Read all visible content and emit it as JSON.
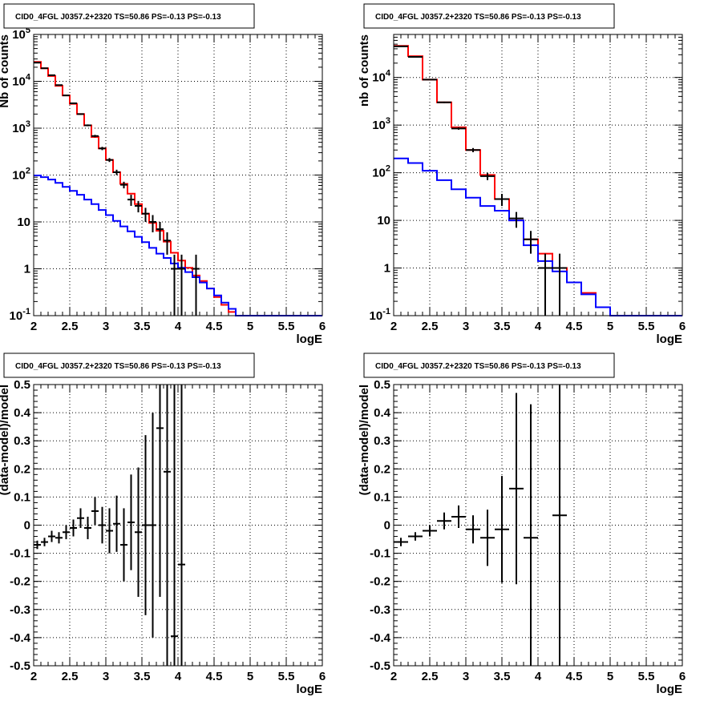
{
  "chart_data": [
    {
      "type": "line",
      "title": "CID0_4FGL J0357.2+2320 TS=50.86 PS=-0.13 PS=-0.13",
      "xlabel": "logE",
      "ylabel": "Nb of counts",
      "xlim": [
        2,
        6
      ],
      "ylim": [
        0.1,
        100000
      ],
      "log_y": true,
      "grid": true,
      "ytick_labels": [
        "10^-1",
        "1",
        "10",
        "10^2",
        "10^3",
        "10^4",
        "10^5"
      ],
      "xtick_labels": [
        "2",
        "2.5",
        "3",
        "3.5",
        "4",
        "4.5",
        "5",
        "5.5",
        "6"
      ],
      "bin_edges": [
        2.0,
        2.1,
        2.2,
        2.3,
        2.4,
        2.5,
        2.6,
        2.7,
        2.8,
        2.9,
        3.0,
        3.1,
        3.2,
        3.3,
        3.4,
        3.5,
        3.6,
        3.7,
        3.8,
        3.9,
        4.0,
        4.1,
        4.2,
        4.3,
        4.4,
        4.5,
        4.6,
        4.7,
        4.8,
        4.9,
        5.0,
        5.1,
        5.2,
        5.3,
        5.4,
        5.5,
        5.6,
        5.7,
        5.8,
        5.9,
        6.0
      ],
      "series": [
        {
          "color": "#ff0000",
          "values": [
            26000,
            19000,
            13000,
            8000,
            5000,
            3300,
            2000,
            1150,
            650,
            370,
            210,
            115,
            65,
            40,
            24,
            15,
            9.5,
            6.5,
            3.8,
            2.2,
            1.5,
            1.05,
            0.72,
            0.55,
            0.38,
            0.25,
            0.17,
            0.12,
            0.1,
            0.1,
            0.1,
            0.1,
            0.1,
            0.1,
            0.1,
            0.1,
            0.1,
            0.1,
            0.1,
            0.1
          ]
        },
        {
          "color": "#0000ff",
          "values": [
            98,
            90,
            80,
            68,
            56,
            46,
            38,
            30,
            24,
            18,
            14,
            10.5,
            8,
            6.3,
            4.8,
            3.7,
            2.8,
            2.1,
            1.7,
            1.3,
            1.05,
            0.85,
            0.66,
            0.51,
            0.38,
            0.27,
            0.19,
            0.14,
            0.1,
            0.1,
            0.1,
            0.1,
            0.1,
            0.1,
            0.1,
            0.1,
            0.1,
            0.1,
            0.1,
            0.1
          ]
        }
      ],
      "points": [
        {
          "x": 2.05,
          "y": 25000,
          "err": 300
        },
        {
          "x": 2.15,
          "y": 19000,
          "err": 250
        },
        {
          "x": 2.25,
          "y": 13500,
          "err": 200
        },
        {
          "x": 2.35,
          "y": 8300,
          "err": 150
        },
        {
          "x": 2.45,
          "y": 5000,
          "err": 110
        },
        {
          "x": 2.55,
          "y": 3400,
          "err": 90
        },
        {
          "x": 2.65,
          "y": 2000,
          "err": 70
        },
        {
          "x": 2.75,
          "y": 1150,
          "err": 50
        },
        {
          "x": 2.85,
          "y": 680,
          "err": 40
        },
        {
          "x": 2.95,
          "y": 370,
          "err": 30
        },
        {
          "x": 3.05,
          "y": 210,
          "err": 20
        },
        {
          "x": 3.15,
          "y": 115,
          "err": 15
        },
        {
          "x": 3.25,
          "y": 62,
          "err": 10
        },
        {
          "x": 3.35,
          "y": 30,
          "err": 8
        },
        {
          "x": 3.45,
          "y": 22,
          "err": 6
        },
        {
          "x": 3.55,
          "y": 15,
          "err": 5
        },
        {
          "x": 3.65,
          "y": 10,
          "err": 4
        },
        {
          "x": 3.75,
          "y": 7,
          "err": 3
        },
        {
          "x": 3.85,
          "y": 4,
          "err": 2
        },
        {
          "x": 3.95,
          "y": 1,
          "err": 1
        },
        {
          "x": 4.05,
          "y": 1,
          "err": 1
        },
        {
          "x": 4.25,
          "y": 1,
          "err": 1
        }
      ]
    },
    {
      "type": "line",
      "title": "CID0_4FGL J0357.2+2320 TS=50.86 PS=-0.13 PS=-0.13",
      "xlabel": "logE",
      "ylabel": "nb of counts",
      "xlim": [
        2,
        6
      ],
      "ylim": [
        0.1,
        80000
      ],
      "log_y": true,
      "grid": true,
      "ytick_labels": [
        "10^-1",
        "1",
        "10",
        "10^2",
        "10^3",
        "10^4"
      ],
      "xtick_labels": [
        "2",
        "2.5",
        "3",
        "3.5",
        "4",
        "4.5",
        "5",
        "5.5",
        "6"
      ],
      "bin_edges": [
        2.0,
        2.2,
        2.4,
        2.6,
        2.8,
        3.0,
        3.2,
        3.4,
        3.6,
        3.8,
        4.0,
        4.2,
        4.4,
        4.6,
        4.8,
        5.0,
        5.2,
        5.4,
        5.6,
        5.8,
        6.0
      ],
      "series": [
        {
          "color": "#ff0000",
          "values": [
            46000,
            28000,
            9000,
            3000,
            900,
            300,
            90,
            28,
            10,
            4,
            2,
            1,
            0.5,
            0.3,
            0.15,
            0.1,
            0.1,
            0.1,
            0.1,
            0.1
          ]
        },
        {
          "color": "#0000ff",
          "values": [
            200,
            160,
            110,
            70,
            45,
            30,
            20,
            16,
            10,
            3,
            1.4,
            0.85,
            0.5,
            0.28,
            0.15,
            0.1,
            0.1,
            0.1,
            0.1,
            0.1
          ]
        }
      ],
      "points": [
        {
          "x": 2.1,
          "y": 45000,
          "err": 400
        },
        {
          "x": 2.3,
          "y": 27000,
          "err": 300
        },
        {
          "x": 2.5,
          "y": 9000,
          "err": 180
        },
        {
          "x": 2.7,
          "y": 3000,
          "err": 100
        },
        {
          "x": 2.9,
          "y": 850,
          "err": 50
        },
        {
          "x": 3.1,
          "y": 300,
          "err": 30
        },
        {
          "x": 3.3,
          "y": 85,
          "err": 15
        },
        {
          "x": 3.5,
          "y": 28,
          "err": 8
        },
        {
          "x": 3.7,
          "y": 11,
          "err": 4
        },
        {
          "x": 3.9,
          "y": 4,
          "err": 2
        },
        {
          "x": 4.1,
          "y": 1,
          "err": 1
        },
        {
          "x": 4.3,
          "y": 1,
          "err": 1
        }
      ]
    },
    {
      "type": "scatter",
      "title": "CID0_4FGL J0357.2+2320 TS=50.86 PS=-0.13 PS=-0.13",
      "xlabel": "logE",
      "ylabel": "(data-model)/model",
      "xlim": [
        2,
        6
      ],
      "ylim": [
        -0.5,
        0.5
      ],
      "grid": true,
      "ytick_labels": [
        "-0.5",
        "-0.4",
        "-0.3",
        "-0.2",
        "-0.1",
        "0",
        "0.1",
        "0.2",
        "0.3",
        "0.4",
        "0.5"
      ],
      "xtick_labels": [
        "2",
        "2.5",
        "3",
        "3.5",
        "4",
        "4.5",
        "5",
        "5.5",
        "6"
      ],
      "bin_half_width": 0.05,
      "points": [
        {
          "x": 2.05,
          "y": -0.07,
          "err": 0.015
        },
        {
          "x": 2.15,
          "y": -0.06,
          "err": 0.015
        },
        {
          "x": 2.25,
          "y": -0.04,
          "err": 0.02
        },
        {
          "x": 2.35,
          "y": -0.045,
          "err": 0.02
        },
        {
          "x": 2.45,
          "y": -0.025,
          "err": 0.025
        },
        {
          "x": 2.55,
          "y": -0.01,
          "err": 0.03
        },
        {
          "x": 2.65,
          "y": 0.025,
          "err": 0.035
        },
        {
          "x": 2.75,
          "y": -0.01,
          "err": 0.04
        },
        {
          "x": 2.85,
          "y": 0.05,
          "err": 0.05
        },
        {
          "x": 2.95,
          "y": 0.0,
          "err": 0.065
        },
        {
          "x": 3.05,
          "y": -0.02,
          "err": 0.08
        },
        {
          "x": 3.15,
          "y": 0.005,
          "err": 0.1
        },
        {
          "x": 3.25,
          "y": -0.07,
          "err": 0.13
        },
        {
          "x": 3.35,
          "y": 0.01,
          "err": 0.17
        },
        {
          "x": 3.45,
          "y": -0.025,
          "err": 0.23
        },
        {
          "x": 3.55,
          "y": 0.0,
          "err": 0.32
        },
        {
          "x": 3.65,
          "y": 0.0,
          "err": 0.4
        },
        {
          "x": 3.75,
          "y": 0.345,
          "err": 0.6
        },
        {
          "x": 3.85,
          "y": 0.19,
          "err": 0.8
        },
        {
          "x": 3.95,
          "y": -0.395,
          "err": 1.0
        },
        {
          "x": 4.05,
          "y": -0.14,
          "err": 1.0
        }
      ]
    },
    {
      "type": "scatter",
      "title": "CID0_4FGL J0357.2+2320 TS=50.86 PS=-0.13 PS=-0.13",
      "xlabel": "logE",
      "ylabel": "(data-model)/model",
      "xlim": [
        2,
        6
      ],
      "ylim": [
        -0.5,
        0.5
      ],
      "grid": true,
      "ytick_labels": [
        "-0.5",
        "-0.4",
        "-0.3",
        "-0.2",
        "-0.1",
        "0",
        "0.1",
        "0.2",
        "0.3",
        "0.4",
        "0.5"
      ],
      "xtick_labels": [
        "2",
        "2.5",
        "3",
        "3.5",
        "4",
        "4.5",
        "5",
        "5.5",
        "6"
      ],
      "bin_half_width": 0.1,
      "points": [
        {
          "x": 2.1,
          "y": -0.06,
          "err": 0.015
        },
        {
          "x": 2.3,
          "y": -0.04,
          "err": 0.015
        },
        {
          "x": 2.5,
          "y": -0.02,
          "err": 0.02
        },
        {
          "x": 2.7,
          "y": 0.015,
          "err": 0.03
        },
        {
          "x": 2.9,
          "y": 0.03,
          "err": 0.04
        },
        {
          "x": 3.1,
          "y": -0.015,
          "err": 0.05
        },
        {
          "x": 3.3,
          "y": -0.045,
          "err": 0.1
        },
        {
          "x": 3.5,
          "y": -0.015,
          "err": 0.19
        },
        {
          "x": 3.7,
          "y": 0.13,
          "err": 0.34
        },
        {
          "x": 3.9,
          "y": -0.045,
          "err": 0.475
        },
        {
          "x": 4.3,
          "y": 0.035,
          "err": 1.0
        }
      ]
    }
  ]
}
